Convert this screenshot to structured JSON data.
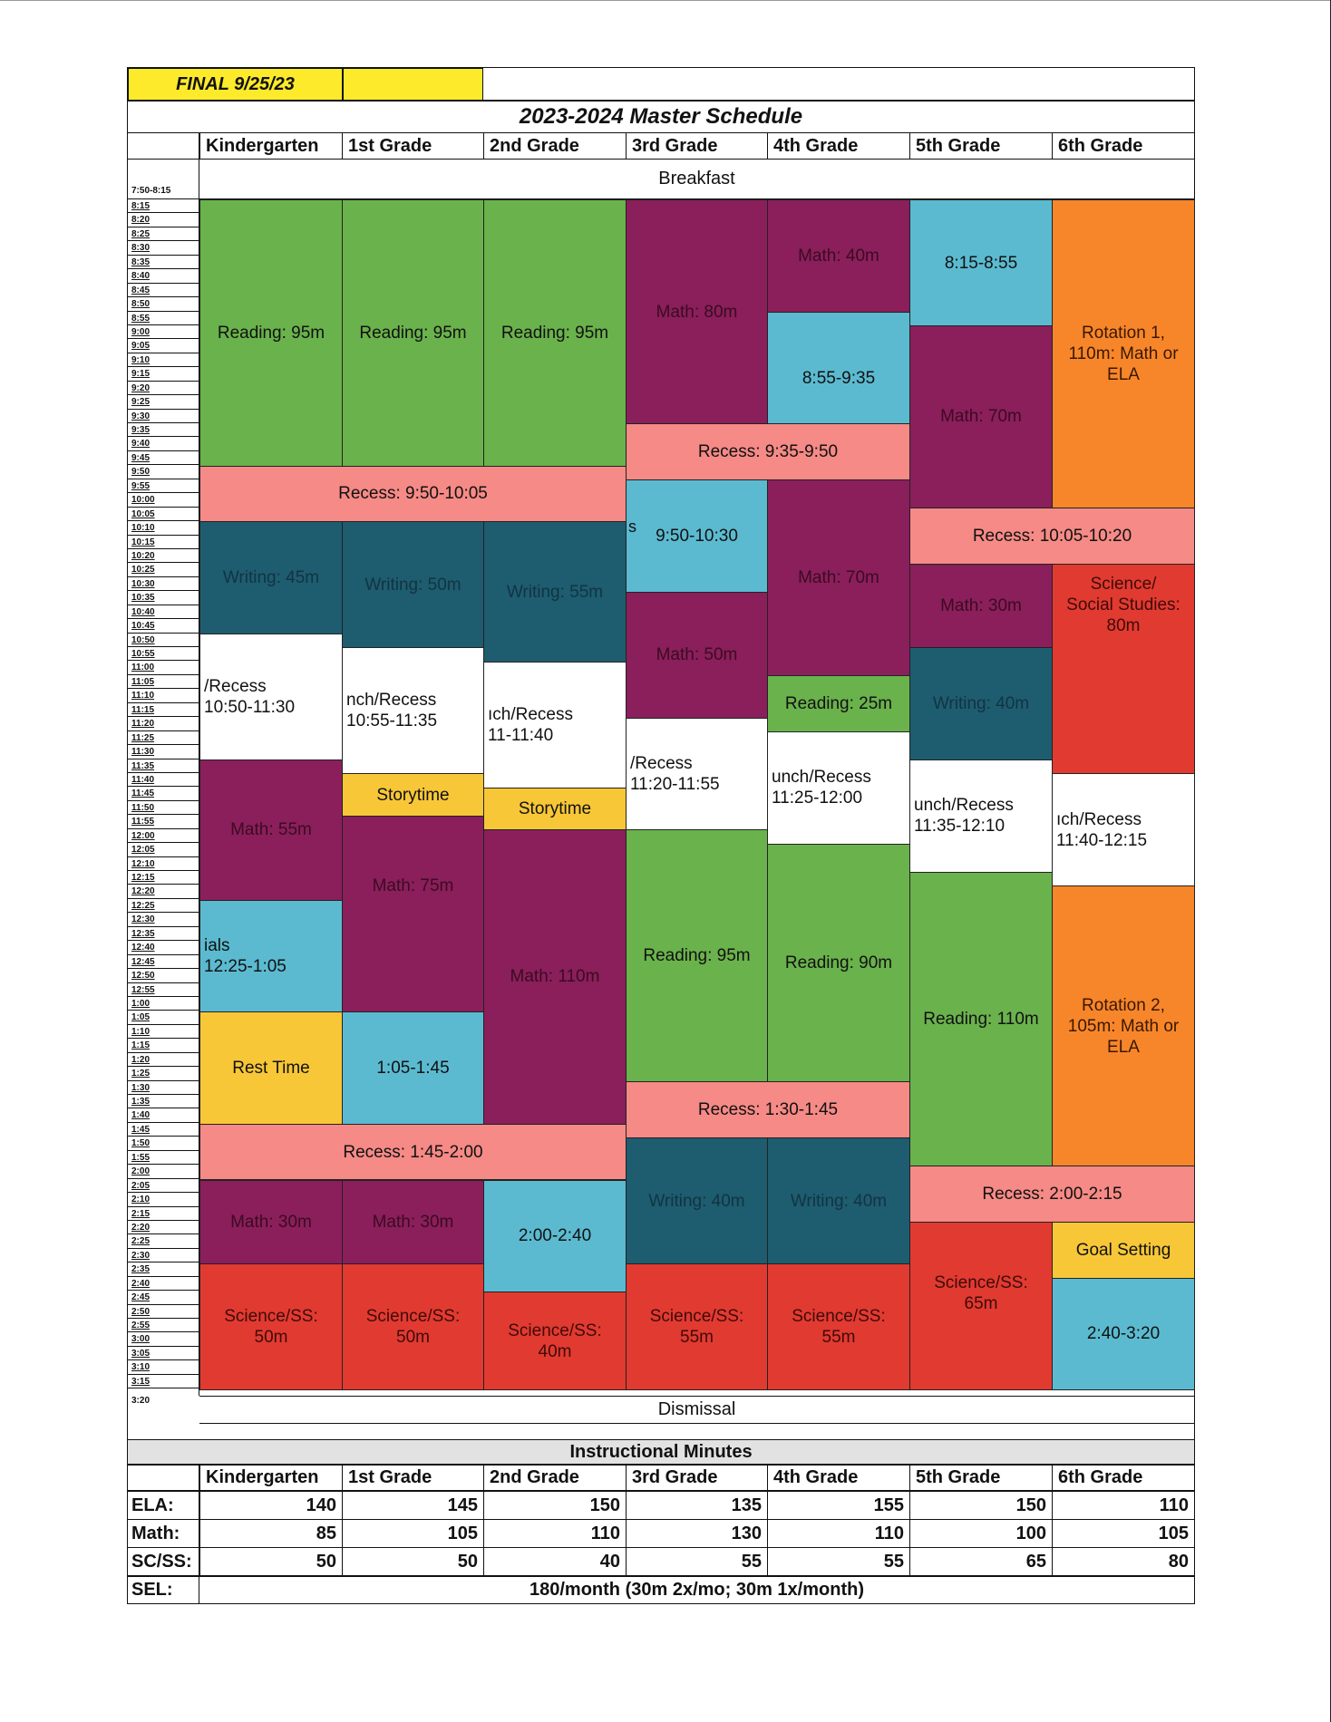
{
  "header": {
    "final_label": "FINAL 9/25/23",
    "title": "2023-2024 Master Schedule"
  },
  "grades": [
    "Kindergarten",
    "1st Grade",
    "2nd Grade",
    "3rd Grade",
    "4th Grade",
    "5th Grade",
    "6th Grade"
  ],
  "rows": {
    "first_time": "7:50-8:15",
    "breakfast": "Breakfast",
    "dismissal": "Dismissal",
    "dismissal_time": "3:20",
    "times": [
      "8:15",
      "8:20",
      "8:25",
      "8:30",
      "8:35",
      "8:40",
      "8:45",
      "8:50",
      "8:55",
      "9:00",
      "9:05",
      "9:10",
      "9:15",
      "9:20",
      "9:25",
      "9:30",
      "9:35",
      "9:40",
      "9:45",
      "9:50",
      "9:55",
      "10:00",
      "10:05",
      "10:10",
      "10:15",
      "10:20",
      "10:25",
      "10:30",
      "10:35",
      "10:40",
      "10:45",
      "10:50",
      "10:55",
      "11:00",
      "11:05",
      "11:10",
      "11:15",
      "11:20",
      "11:25",
      "11:30",
      "11:35",
      "11:40",
      "11:45",
      "11:50",
      "11:55",
      "12:00",
      "12:05",
      "12:10",
      "12:15",
      "12:20",
      "12:25",
      "12:30",
      "12:35",
      "12:40",
      "12:45",
      "12:50",
      "12:55",
      "1:00",
      "1:05",
      "1:10",
      "1:15",
      "1:20",
      "1:25",
      "1:30",
      "1:35",
      "1:40",
      "1:45",
      "1:50",
      "1:55",
      "2:00",
      "2:05",
      "2:10",
      "2:15",
      "2:20",
      "2:25",
      "2:30",
      "2:35",
      "2:40",
      "2:45",
      "2:50",
      "2:55",
      "3:00",
      "3:05",
      "3:10",
      "3:15"
    ]
  },
  "blocks": [
    {
      "col": 0,
      "span": 1,
      "start": 0,
      "end": 19,
      "color": "green",
      "text": "Reading:  95m"
    },
    {
      "col": 1,
      "span": 1,
      "start": 0,
      "end": 19,
      "color": "green",
      "text": "Reading:  95m"
    },
    {
      "col": 2,
      "span": 1,
      "start": 0,
      "end": 19,
      "color": "green",
      "text": "Reading:  95m"
    },
    {
      "col": 3,
      "span": 1,
      "start": 0,
      "end": 16,
      "color": "purple",
      "text": "Math:  80m"
    },
    {
      "col": 4,
      "span": 1,
      "start": 0,
      "end": 8,
      "color": "purple",
      "text": "Math:  40m"
    },
    {
      "col": 4,
      "span": 1,
      "start": 8,
      "end": 16,
      "color": "teal",
      "text": "8:55-9:35",
      "align": "bottom"
    },
    {
      "col": 3,
      "span": 2,
      "start": 16,
      "end": 20,
      "color": "salmon",
      "text": "Recess:  9:35-9:50"
    },
    {
      "col": 5,
      "span": 1,
      "start": 0,
      "end": 9,
      "color": "teal",
      "text": "8:15-8:55"
    },
    {
      "col": 5,
      "span": 1,
      "start": 9,
      "end": 22,
      "color": "purple",
      "text": "Math:  70m"
    },
    {
      "col": 6,
      "span": 1,
      "start": 0,
      "end": 22,
      "color": "orange",
      "text": "Rotation 1,\n110m:  Math or\nELA"
    },
    {
      "col": 0,
      "span": 3,
      "start": 19,
      "end": 23,
      "color": "salmon",
      "text": "Recess:  9:50-10:05"
    },
    {
      "col": 0,
      "span": 1,
      "start": 23,
      "end": 31,
      "color": "dteal",
      "text": "Writing:  45m"
    },
    {
      "col": 1,
      "span": 1,
      "start": 23,
      "end": 32,
      "color": "dteal",
      "text": "Writing:  50m"
    },
    {
      "col": 2,
      "span": 1,
      "start": 23,
      "end": 33,
      "color": "dteal",
      "text": "Writing:  55m"
    },
    {
      "col": 3,
      "span": 1,
      "start": 20,
      "end": 28,
      "color": "teal",
      "text": "9:50-10:30",
      "prefix": "s"
    },
    {
      "col": 4,
      "span": 1,
      "start": 20,
      "end": 34,
      "color": "purple",
      "text": "Math:  70m"
    },
    {
      "col": 5,
      "span": 2,
      "start": 22,
      "end": 26,
      "color": "salmon",
      "text": "Recess:  10:05-10:20"
    },
    {
      "col": 5,
      "span": 1,
      "start": 26,
      "end": 32,
      "color": "purple",
      "text": "Math:  30m"
    },
    {
      "col": 6,
      "span": 1,
      "start": 26,
      "end": 41,
      "color": "red",
      "text": "Science/\nSocial Studies:\n80m",
      "align": "top"
    },
    {
      "col": 3,
      "span": 1,
      "start": 28,
      "end": 37,
      "color": "purple",
      "text": "Math:  50m"
    },
    {
      "col": 4,
      "span": 1,
      "start": 34,
      "end": 38,
      "color": "green",
      "text": "Reading:  25m"
    },
    {
      "col": 5,
      "span": 1,
      "start": 32,
      "end": 40,
      "color": "dteal",
      "text": "Writing:  40m"
    },
    {
      "col": 0,
      "span": 1,
      "start": 31,
      "end": 40,
      "color": "white",
      "text": "/Recess\n    10:50-11:30"
    },
    {
      "col": 1,
      "span": 1,
      "start": 32,
      "end": 41,
      "color": "white",
      "text": "nch/Recess\n    10:55-11:35"
    },
    {
      "col": 2,
      "span": 1,
      "start": 33,
      "end": 42,
      "color": "white",
      "text": "ıch/Recess\n      11-11:40"
    },
    {
      "col": 3,
      "span": 1,
      "start": 37,
      "end": 45,
      "color": "white",
      "text": "/Recess\n   11:20-11:55"
    },
    {
      "col": 4,
      "span": 1,
      "start": 38,
      "end": 46,
      "color": "white",
      "text": "unch/Recess\n     11:25-12:00"
    },
    {
      "col": 5,
      "span": 1,
      "start": 40,
      "end": 48,
      "color": "white",
      "text": "unch/Recess\n     11:35-12:10"
    },
    {
      "col": 6,
      "span": 1,
      "start": 41,
      "end": 49,
      "color": "white",
      "text": "ıch/Recess\n     11:40-12:15"
    },
    {
      "col": 0,
      "span": 1,
      "start": 40,
      "end": 50,
      "color": "purple",
      "text": "Math:  55m"
    },
    {
      "col": 1,
      "span": 1,
      "start": 41,
      "end": 44,
      "color": "yellow",
      "text": "Storytime"
    },
    {
      "col": 1,
      "span": 1,
      "start": 44,
      "end": 58,
      "color": "purple",
      "text": "Math:  75m",
      "align": "upper"
    },
    {
      "col": 2,
      "span": 1,
      "start": 42,
      "end": 45,
      "color": "yellow",
      "text": "Storytime"
    },
    {
      "col": 2,
      "span": 1,
      "start": 45,
      "end": 66,
      "color": "purple",
      "text": "Math:  110m"
    },
    {
      "col": 3,
      "span": 1,
      "start": 45,
      "end": 63,
      "color": "green",
      "text": "Reading:  95m"
    },
    {
      "col": 4,
      "span": 1,
      "start": 46,
      "end": 63,
      "color": "green",
      "text": "Reading:  90m"
    },
    {
      "col": 5,
      "span": 1,
      "start": 48,
      "end": 69,
      "color": "green",
      "text": "Reading:  110m"
    },
    {
      "col": 6,
      "span": 1,
      "start": 49,
      "end": 69,
      "color": "orange",
      "text": "Rotation 2,\n105m:  Math or\nELA"
    },
    {
      "col": 0,
      "span": 1,
      "start": 50,
      "end": 58,
      "color": "teal",
      "text": "ials\n    12:25-1:05"
    },
    {
      "col": 0,
      "span": 1,
      "start": 58,
      "end": 66,
      "color": "yellow",
      "text": "Rest Time"
    },
    {
      "col": 1,
      "span": 1,
      "start": 58,
      "end": 66,
      "color": "teal",
      "text": "1:05-1:45"
    },
    {
      "col": 3,
      "span": 2,
      "start": 63,
      "end": 67,
      "color": "salmon",
      "text": "Recess:  1:30-1:45"
    },
    {
      "col": 0,
      "span": 3,
      "start": 66,
      "end": 70,
      "color": "salmon",
      "text": "Recess:  1:45-2:00"
    },
    {
      "col": 5,
      "span": 2,
      "start": 69,
      "end": 73,
      "color": "salmon",
      "text": "Recess:  2:00-2:15"
    },
    {
      "col": 0,
      "span": 1,
      "start": 70,
      "end": 76,
      "color": "purple",
      "text": "Math:  30m"
    },
    {
      "col": 1,
      "span": 1,
      "start": 70,
      "end": 76,
      "color": "purple",
      "text": "Math:  30m"
    },
    {
      "col": 2,
      "span": 1,
      "start": 70,
      "end": 78,
      "color": "teal",
      "text": "2:00-2:40"
    },
    {
      "col": 3,
      "span": 1,
      "start": 67,
      "end": 76,
      "color": "dteal",
      "text": "Writing:  40m"
    },
    {
      "col": 4,
      "span": 1,
      "start": 67,
      "end": 76,
      "color": "dteal",
      "text": "Writing:  40m"
    },
    {
      "col": 6,
      "span": 1,
      "start": 73,
      "end": 77,
      "color": "yellow",
      "text": "Goal Setting"
    },
    {
      "col": 0,
      "span": 1,
      "start": 76,
      "end": 85,
      "color": "red",
      "text": "Science/SS:\n50m"
    },
    {
      "col": 1,
      "span": 1,
      "start": 76,
      "end": 85,
      "color": "red",
      "text": "Science/SS:\n50m"
    },
    {
      "col": 2,
      "span": 1,
      "start": 78,
      "end": 85,
      "color": "red",
      "text": "Science/SS:\n40m"
    },
    {
      "col": 3,
      "span": 1,
      "start": 76,
      "end": 85,
      "color": "red",
      "text": "Science/SS:\n55m"
    },
    {
      "col": 4,
      "span": 1,
      "start": 76,
      "end": 85,
      "color": "red",
      "text": "Science/SS:\n55m"
    },
    {
      "col": 5,
      "span": 1,
      "start": 73,
      "end": 85,
      "color": "red",
      "text": "Science/SS:\n65m",
      "align": "upper"
    },
    {
      "col": 6,
      "span": 1,
      "start": 77,
      "end": 85,
      "color": "teal",
      "text": "2:40-3:20"
    }
  ],
  "minutes": {
    "title": "Instructional Minutes",
    "rows": [
      {
        "label": "ELA:",
        "values": [
          "140",
          "145",
          "150",
          "135",
          "155",
          "150",
          "110"
        ]
      },
      {
        "label": "Math:",
        "values": [
          "85",
          "105",
          "110",
          "130",
          "110",
          "100",
          "105"
        ]
      },
      {
        "label": "SC/SS:",
        "values": [
          "50",
          "50",
          "40",
          "55",
          "55",
          "65",
          "80"
        ]
      }
    ],
    "sel_label": "SEL:",
    "sel_value": "180/month (30m 2x/mo; 30m 1x/month)"
  },
  "colors": {
    "green": "#6ab24c",
    "purple": "#8a1f5b",
    "teal": "#5bbad0",
    "dteal": "#1e5c70",
    "salmon": "#f58a86",
    "red": "#e13a31",
    "yellow": "#f8c737",
    "orange": "#f7862b",
    "white": "#ffffff"
  }
}
